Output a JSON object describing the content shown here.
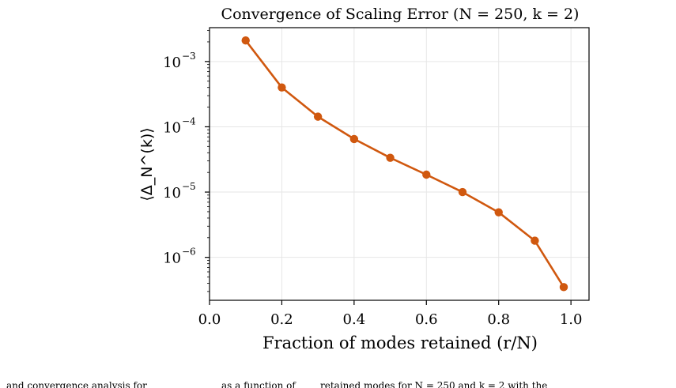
{
  "chart_data": {
    "type": "line",
    "title": "Convergence of Scaling Error (N = 250, k = 2)",
    "xlabel": "Fraction of modes retained (r/N)",
    "ylabel": "⟨Δ_N^(k)⟩",
    "yscale": "log",
    "xlim": [
      0.0,
      1.05
    ],
    "ylim": [
      2.2e-07,
      0.0033
    ],
    "x_ticks": [
      0.0,
      0.2,
      0.4,
      0.6,
      0.8,
      1.0
    ],
    "x_tick_labels": [
      "0.0",
      "0.2",
      "0.4",
      "0.6",
      "0.8",
      "1.0"
    ],
    "y_ticks": [
      1e-06,
      1e-05,
      0.0001,
      0.001
    ],
    "y_tick_labels": [
      "10",
      "10",
      "10",
      "10"
    ],
    "y_tick_exponents": [
      "−6",
      "−5",
      "−4",
      "−3"
    ],
    "grid": true,
    "series": [
      {
        "x": [
          0.1,
          0.2,
          0.3,
          0.4,
          0.5,
          0.6,
          0.7,
          0.8,
          0.9,
          0.98
        ],
        "values": [
          0.0021,
          0.0004,
          0.000143,
          6.5e-05,
          3.35e-05,
          1.85e-05,
          1e-05,
          4.9e-06,
          1.8e-06,
          3.5e-07
        ],
        "color": "#d0580f"
      }
    ]
  },
  "caption": {
    "part1": "and convergence analysis for",
    "part2": "as a function of",
    "part3": "retained modes for N = 250 and k = 2 with the"
  }
}
